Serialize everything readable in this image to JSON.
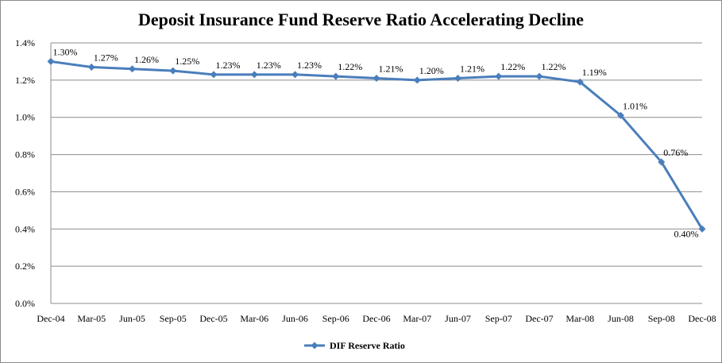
{
  "chart_data": {
    "type": "line",
    "title": "Deposit Insurance Fund Reserve Ratio Accelerating Decline",
    "categories": [
      "Dec-04",
      "Mar-05",
      "Jun-05",
      "Sep-05",
      "Dec-05",
      "Mar-06",
      "Jun-06",
      "Sep-06",
      "Dec-06",
      "Mar-07",
      "Jun-07",
      "Sep-07",
      "Dec-07",
      "Mar-08",
      "Jun-08",
      "Sep-08",
      "Dec-08"
    ],
    "series": [
      {
        "name": "DIF Reserve Ratio",
        "values": [
          1.3,
          1.27,
          1.26,
          1.25,
          1.23,
          1.23,
          1.23,
          1.22,
          1.21,
          1.2,
          1.21,
          1.22,
          1.22,
          1.19,
          1.01,
          0.76,
          0.4
        ],
        "data_labels": [
          "1.30%",
          "1.27%",
          "1.26%",
          "1.25%",
          "1.23%",
          "1.23%",
          "1.23%",
          "1.22%",
          "1.21%",
          "1.20%",
          "1.21%",
          "1.22%",
          "1.22%",
          "1.19%",
          "1.01%",
          "0.76%",
          "0.40%"
        ],
        "color": "#4a7ebb"
      }
    ],
    "yticks": [
      "0.0%",
      "0.2%",
      "0.4%",
      "0.6%",
      "0.8%",
      "1.0%",
      "1.2%",
      "1.4%"
    ],
    "ylim": [
      0,
      1.4
    ],
    "grid": true,
    "legend": "bottom-center",
    "xlabel": "",
    "ylabel": ""
  }
}
